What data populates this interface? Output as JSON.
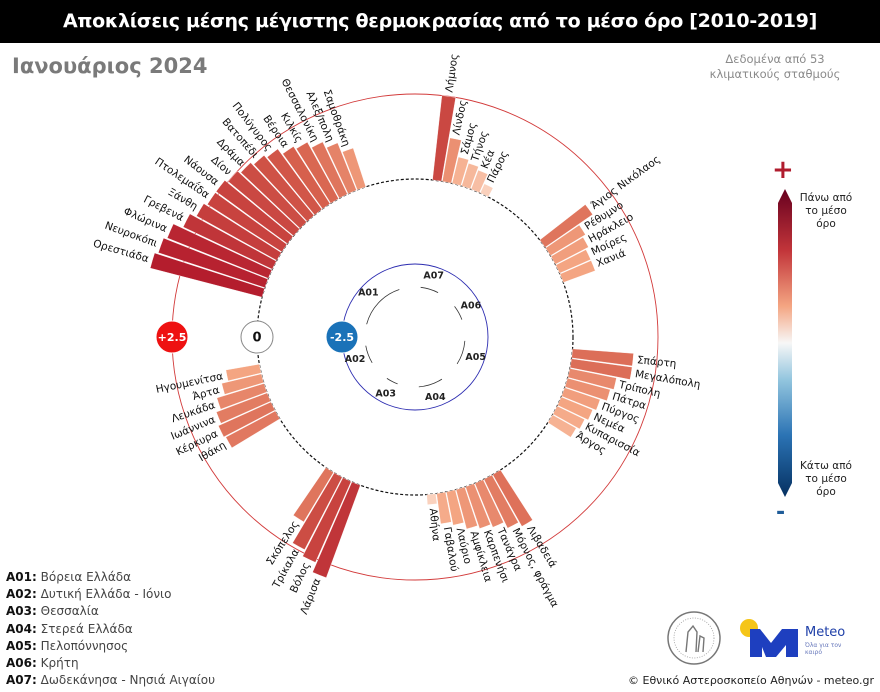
{
  "header": {
    "title": "Αποκλίσεις μέσης μέγιστης θερμοκρασίας από το μέσο όρο [2010-2019]",
    "subtitle": "Ιανουάριος 2024",
    "note": "Δεδομένα από 53 κλιματικούς σταθμούς"
  },
  "scale_legend": {
    "plus": "+",
    "minus": "-",
    "above": "Πάνω από το μέσο όρο",
    "below": "Κάτω από το μέσο όρο",
    "top_color": "#67001f",
    "mid_color": "#f7f7f7",
    "bottom_color": "#053061"
  },
  "chart_data": {
    "type": "radial-bar",
    "unit": "°C",
    "reference_rings": [
      {
        "label": "+2.5",
        "value": 2.5,
        "color": "#ee1111"
      },
      {
        "label": "0",
        "value": 0,
        "color": "#ffffff"
      },
      {
        "label": "-2.5",
        "value": -2.5,
        "color": "#1a72b8"
      }
    ],
    "groups": [
      {
        "code": "A07",
        "name": "Δωδεκάνησα - Νησιά Αιγαίου",
        "stations": [
          {
            "name": "Λήμνος",
            "value": 2.5
          },
          {
            "name": "Λίνδος",
            "value": 1.3
          },
          {
            "name": "Σάμος",
            "value": 0.8
          },
          {
            "name": "Τήνος",
            "value": 0.7
          },
          {
            "name": "Κέα",
            "value": 0.6
          },
          {
            "name": "Πάρος",
            "value": 0.3
          }
        ]
      },
      {
        "code": "A06",
        "name": "Κρήτη",
        "stations": [
          {
            "name": "Άγιος Νικόλαος",
            "value": 1.7
          },
          {
            "name": "Ρέθυμνο",
            "value": 1.2
          },
          {
            "name": "Ηράκλειο",
            "value": 1.1
          },
          {
            "name": "Μοίρες",
            "value": 1.0
          },
          {
            "name": "Χανιά",
            "value": 1.0
          }
        ]
      },
      {
        "code": "A05",
        "name": "Πελοπόννησος",
        "stations": [
          {
            "name": "Σπάρτη",
            "value": 1.8
          },
          {
            "name": "Μεγαλόπολη",
            "value": 1.8
          },
          {
            "name": "Τρίπολη",
            "value": 1.4
          },
          {
            "name": "Πάτρα",
            "value": 1.3
          },
          {
            "name": "Πύργος",
            "value": 1.1
          },
          {
            "name": "Νεμέα",
            "value": 1.0
          },
          {
            "name": "Κυπαρισσία",
            "value": 0.9
          },
          {
            "name": "Άργος",
            "value": 0.8
          }
        ]
      },
      {
        "code": "A04",
        "name": "Στερεά Ελλάδα",
        "stations": [
          {
            "name": "Λιβαδειά",
            "value": 1.75
          },
          {
            "name": "Μόρνος, φράγμα",
            "value": 1.6
          },
          {
            "name": "Τανάγρα",
            "value": 1.4
          },
          {
            "name": "Καρπενήσι",
            "value": 1.3
          },
          {
            "name": "Αμφίκλεια",
            "value": 1.2
          },
          {
            "name": "Λαύριο",
            "value": 1.0
          },
          {
            "name": "Γαβαλού",
            "value": 0.9
          },
          {
            "name": "Αθήνα",
            "value": 0.3
          }
        ]
      },
      {
        "code": "A03",
        "name": "Θεσσαλία",
        "stations": [
          {
            "name": "Λάρισα",
            "value": 2.9
          },
          {
            "name": "Βόλος",
            "value": 2.6
          },
          {
            "name": "Τρίκαλα",
            "value": 2.4
          },
          {
            "name": "Σκόπελος",
            "value": 1.7
          }
        ]
      },
      {
        "code": "A02",
        "name": "Δυτική Ελλάδα - Ιόνιο",
        "stations": [
          {
            "name": "Ιθάκη",
            "value": 1.65
          },
          {
            "name": "Κέρκυρα",
            "value": 1.7
          },
          {
            "name": "Ιωάννινα",
            "value": 1.6
          },
          {
            "name": "Λευκάδα",
            "value": 1.45
          },
          {
            "name": "Άρτα",
            "value": 1.2
          },
          {
            "name": "Ηγουμενίτσα",
            "value": 1.0
          }
        ]
      },
      {
        "code": "A01",
        "name": "Βόρεια Ελλάδα",
        "stations": [
          {
            "name": "Ορεστιάδα",
            "value": 3.4
          },
          {
            "name": "Νευροκόπι",
            "value": 3.3
          },
          {
            "name": "Φλώρινα",
            "value": 3.2
          },
          {
            "name": "Γρεβενά",
            "value": 2.9
          },
          {
            "name": "Ξάνθη",
            "value": 2.7
          },
          {
            "name": "Πτολεμαΐδα",
            "value": 2.6
          },
          {
            "name": "Νάουσα",
            "value": 2.6
          },
          {
            "name": "Δίον",
            "value": 2.5
          },
          {
            "name": "Δράμα",
            "value": 2.4
          },
          {
            "name": "Βατοπέδι",
            "value": 2.3
          },
          {
            "name": "Πολύγυρος",
            "value": 2.2
          },
          {
            "name": "Βέροια",
            "value": 2.0
          },
          {
            "name": "Κιλκίς",
            "value": 1.9
          },
          {
            "name": "Θεσσαλονίκη",
            "value": 1.7
          },
          {
            "name": "Αλεξ/πολη",
            "value": 1.5
          },
          {
            "name": "Σαμοθράκη",
            "value": 1.2
          }
        ]
      }
    ]
  },
  "region_legend": [
    {
      "code": "A01:",
      "name": "Βόρεια Ελλάδα"
    },
    {
      "code": "A02:",
      "name": "Δυτική Ελλάδα - Ιόνιο"
    },
    {
      "code": "A03:",
      "name": "Θεσσαλία"
    },
    {
      "code": "A04:",
      "name": "Στερεά Ελλάδα"
    },
    {
      "code": "A05:",
      "name": "Πελοπόννησος"
    },
    {
      "code": "A06:",
      "name": "Κρήτη"
    },
    {
      "code": "A07:",
      "name": "Δωδεκάνησα - Νησιά Αιγαίου"
    }
  ],
  "footer": {
    "credit": "© Εθνικό Αστεροσκοπείο Αθηνών - meteo.gr",
    "meteo_logo": "Meteo",
    "meteo_tagline": "Όλα για τον καιρό"
  }
}
